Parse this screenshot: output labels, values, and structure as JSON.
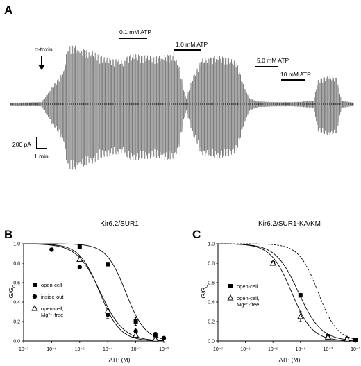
{
  "panel_a": {
    "letter": "A",
    "toxin_label": "α-toxin",
    "scale_current": "200 pA",
    "scale_time": "1 min",
    "atp_bars": [
      {
        "label": "0.1 mM ATP"
      },
      {
        "label": "1.0 mM ATP"
      },
      {
        "label": "5.0 mM ATP"
      },
      {
        "label": "10 mM ATP"
      }
    ]
  },
  "chart_data": [
    {
      "panel": "B",
      "type": "scatter",
      "title": "Kir6.2/SUR1",
      "xlabel": "ATP (M)",
      "ylabel": "G/G",
      "ylabel_sub": "c",
      "xscale": "log",
      "xlim": [
        1e-07,
        0.01
      ],
      "ylim": [
        0,
        1.0
      ],
      "x_tick_labels": [
        "10⁻⁷",
        "10⁻⁶",
        "10⁻⁵",
        "10⁻⁴",
        "10⁻³",
        "10⁻²"
      ],
      "y_tick_labels": [
        "0.0",
        "0.2",
        "0.4",
        "0.6",
        "0.8",
        "1.0"
      ],
      "series": [
        {
          "name": "open-cell",
          "marker": "square",
          "x": [
            1e-05,
            0.0001,
            0.001,
            0.005
          ],
          "y": [
            0.97,
            0.79,
            0.2,
            0.06
          ],
          "err": [
            0,
            0.02,
            0.04,
            0.03
          ],
          "ic50": 0.00044,
          "hill": 1.25
        },
        {
          "name": "inside-out",
          "marker": "circle",
          "x": [
            1e-06,
            1e-05,
            0.0001,
            0.001,
            0.01
          ],
          "y": [
            0.94,
            0.76,
            0.27,
            0.1,
            0.03
          ],
          "err": [
            0,
            0,
            0.04,
            0.03,
            0
          ],
          "ic50": 5.5e-05,
          "hill": 1.05
        },
        {
          "name": "open-cell, Mg²⁺-free",
          "marker": "triangle",
          "x": [
            1e-05,
            0.0001,
            0.001,
            0.005
          ],
          "y": [
            0.84,
            0.31,
            0.06,
            0.02
          ],
          "err": [
            0,
            0.03,
            0,
            0
          ],
          "ic50": 5.2e-05,
          "hill": 1.2
        }
      ],
      "legend_position": "left"
    },
    {
      "panel": "C",
      "type": "scatter",
      "title": "Kir6.2/SUR1-KA/KM",
      "xlabel": "ATP (M)",
      "ylabel": "G/G",
      "ylabel_sub": "c",
      "xscale": "log",
      "xlim": [
        1e-07,
        0.01
      ],
      "ylim": [
        0,
        1.0
      ],
      "x_tick_labels": [
        "10⁻⁷",
        "10⁻⁶",
        "10⁻⁵",
        "10⁻⁴",
        "10⁻³",
        "10⁻²"
      ],
      "y_tick_labels": [
        "0.0",
        "0.2",
        "0.4",
        "0.6",
        "0.8",
        "1.0"
      ],
      "series": [
        {
          "name": "open-cell",
          "marker": "square",
          "x": [
            1e-05,
            0.0001,
            0.001,
            0.005,
            0.01
          ],
          "y": [
            0.8,
            0.47,
            0.05,
            0.02,
            0.01
          ],
          "err": [
            0,
            0.02,
            0,
            0,
            0
          ],
          "ic50": 8.5e-05,
          "hill": 1.05
        },
        {
          "name": "open-cell, Mg²⁺-free",
          "marker": "triangle",
          "x": [
            1e-05,
            0.0001,
            0.001,
            0.005
          ],
          "y": [
            0.8,
            0.25,
            0.04,
            0.02
          ],
          "err": [
            0,
            0.05,
            0,
            0
          ],
          "ic50": 4.8e-05,
          "hill": 1.15
        },
        {
          "name": "",
          "marker": "none",
          "line": "dashed",
          "x": [],
          "y": [],
          "ic50": 0.00044,
          "hill": 1.25
        }
      ],
      "legend_position": "left"
    }
  ]
}
